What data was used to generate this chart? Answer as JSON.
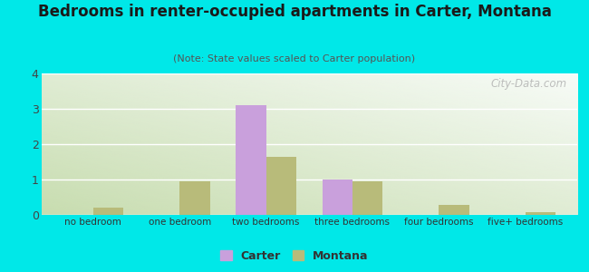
{
  "title": "Bedrooms in renter-occupied apartments in Carter, Montana",
  "subtitle": "(Note: State values scaled to Carter population)",
  "categories": [
    "no bedroom",
    "one bedroom",
    "two bedrooms",
    "three bedrooms",
    "four bedrooms",
    "five+ bedrooms"
  ],
  "carter_values": [
    0,
    0,
    3.1,
    1.0,
    0,
    0
  ],
  "montana_values": [
    0.2,
    0.95,
    1.65,
    0.95,
    0.28,
    0.07
  ],
  "carter_color": "#c9a0dc",
  "montana_color": "#b8bb7a",
  "background_outer": "#00e8e8",
  "gradient_top_right": "#f0f8f0",
  "gradient_bottom_left": "#c8ddb0",
  "ylim": [
    0,
    4
  ],
  "yticks": [
    0,
    1,
    2,
    3,
    4
  ],
  "bar_width": 0.35,
  "legend_carter": "Carter",
  "legend_montana": "Montana",
  "watermark": "City-Data.com",
  "title_fontsize": 12,
  "subtitle_fontsize": 8,
  "tick_fontsize": 7.5
}
